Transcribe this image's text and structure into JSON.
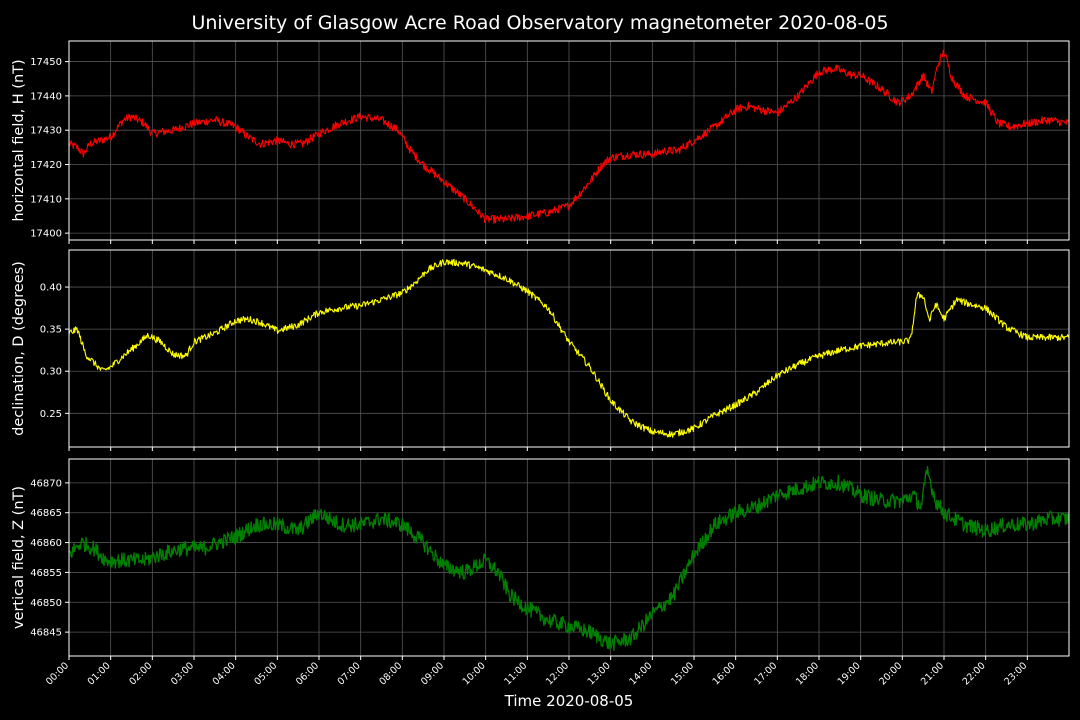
{
  "title": "University of Glasgow Acre Road Observatory magnetometer 2020-08-05",
  "xlabel": "Time 2020-08-05",
  "colors": {
    "background": "#000000",
    "grid": "#555555",
    "axes": "#ffffff",
    "text": "#ffffff"
  },
  "chart_data": [
    {
      "type": "line",
      "ylabel": "horizontal field, H (nT)",
      "color": "#ff0000",
      "ylim": [
        17398,
        17456
      ],
      "yticks": [
        17400,
        17410,
        17420,
        17430,
        17440,
        17450
      ],
      "noise": 1.2,
      "x_hours": [
        0,
        0.2,
        0.35,
        0.5,
        1,
        1.3,
        1.5,
        1.8,
        2.0,
        2.5,
        3.0,
        3.5,
        4.0,
        4.3,
        4.6,
        5.0,
        5.3,
        5.6,
        6.0,
        6.5,
        7.0,
        7.5,
        7.9,
        8.2,
        8.5,
        9.0,
        9.5,
        10.0,
        10.5,
        11.0,
        11.5,
        12.0,
        12.5,
        12.8,
        13.0,
        13.5,
        14.0,
        14.3,
        14.6,
        15.0,
        15.5,
        16.0,
        16.3,
        16.6,
        17.0,
        17.5,
        18.0,
        18.4,
        18.8,
        19.0,
        19.5,
        19.9,
        20.2,
        20.5,
        20.7,
        20.85,
        21.0,
        21.2,
        21.5,
        22.0,
        22.3,
        22.6,
        23.0,
        23.5,
        24.0
      ],
      "values": [
        17426,
        17425,
        17423,
        17426,
        17428,
        17433,
        17434,
        17432,
        17429,
        17430,
        17432,
        17433,
        17431,
        17428,
        17426,
        17427,
        17426,
        17426,
        17429,
        17432,
        17434,
        17433,
        17430,
        17424,
        17420,
        17415,
        17410,
        17404,
        17404,
        17405,
        17406,
        17408,
        17415,
        17420,
        17422,
        17423,
        17423,
        17424,
        17424,
        17427,
        17431,
        17436,
        17437,
        17436,
        17435,
        17440,
        17447,
        17448,
        17446,
        17446,
        17442,
        17438,
        17440,
        17446,
        17441,
        17449,
        17453,
        17445,
        17440,
        17438,
        17432,
        17431,
        17432,
        17433,
        17432
      ]
    },
    {
      "type": "line",
      "ylabel": "declination, D (degrees)",
      "color": "#ffff00",
      "ylim": [
        0.21,
        0.444
      ],
      "yticks": [
        0.25,
        0.3,
        0.35,
        0.4
      ],
      "ytick_labels": [
        "0.25",
        "0.30",
        "0.35",
        "0.40"
      ],
      "noise": 0.004,
      "x_hours": [
        0,
        0.2,
        0.4,
        0.6,
        0.8,
        1.0,
        1.3,
        1.6,
        1.9,
        2.2,
        2.5,
        2.8,
        3.0,
        3.5,
        4.0,
        4.3,
        4.6,
        5.0,
        5.5,
        6.0,
        6.5,
        7.0,
        7.5,
        8.0,
        8.3,
        8.6,
        9.0,
        9.5,
        10.0,
        10.5,
        11.0,
        11.5,
        12.0,
        12.5,
        13.0,
        13.5,
        14.0,
        14.5,
        15.0,
        15.5,
        16.0,
        16.5,
        17.0,
        17.5,
        18.0,
        18.5,
        19.0,
        19.5,
        20.0,
        20.2,
        20.35,
        20.5,
        20.65,
        20.8,
        21.0,
        21.3,
        21.6,
        22.0,
        22.5,
        23.0,
        24.0
      ],
      "values": [
        0.345,
        0.35,
        0.32,
        0.31,
        0.3,
        0.305,
        0.318,
        0.33,
        0.343,
        0.335,
        0.32,
        0.318,
        0.335,
        0.345,
        0.36,
        0.362,
        0.358,
        0.348,
        0.355,
        0.37,
        0.375,
        0.378,
        0.385,
        0.393,
        0.405,
        0.42,
        0.43,
        0.428,
        0.42,
        0.41,
        0.395,
        0.375,
        0.335,
        0.305,
        0.265,
        0.24,
        0.228,
        0.225,
        0.232,
        0.248,
        0.26,
        0.275,
        0.295,
        0.308,
        0.318,
        0.325,
        0.33,
        0.333,
        0.335,
        0.337,
        0.39,
        0.39,
        0.36,
        0.38,
        0.362,
        0.385,
        0.38,
        0.375,
        0.352,
        0.34,
        0.34
      ]
    },
    {
      "type": "line",
      "ylabel": "vertical field, Z (nT)",
      "color": "#008000",
      "ylim": [
        46841,
        46874
      ],
      "yticks": [
        46845,
        46850,
        46855,
        46860,
        46865,
        46870
      ],
      "noise": 0.8,
      "x_hours": [
        0,
        0.3,
        0.6,
        0.9,
        1.2,
        1.8,
        2.2,
        2.7,
        3.2,
        3.6,
        4.0,
        4.5,
        5.0,
        5.5,
        6.0,
        6.5,
        7.0,
        7.5,
        8.0,
        8.5,
        9.0,
        9.5,
        10.0,
        10.3,
        10.6,
        11.0,
        11.5,
        12.0,
        12.5,
        13.0,
        13.5,
        14.0,
        14.5,
        15.0,
        15.5,
        16.0,
        16.5,
        17.0,
        17.5,
        18.0,
        18.5,
        19.0,
        19.5,
        20.0,
        20.25,
        20.45,
        20.6,
        20.8,
        21.0,
        21.5,
        22.0,
        22.5,
        23.0,
        23.5,
        24.0
      ],
      "values": [
        46858,
        46860,
        46859,
        46857,
        46857,
        46857,
        46858,
        46859,
        46859,
        46860,
        46861,
        46863,
        46863,
        46862,
        46865,
        46863,
        46863,
        46864,
        46863,
        46860,
        46856,
        46855,
        46857,
        46855,
        46851,
        46849,
        46847,
        46846,
        46845,
        46843,
        46844,
        46848,
        46851,
        46858,
        46863,
        46865,
        46866,
        46868,
        46869,
        46870,
        46870,
        46868,
        46867,
        46867,
        46868,
        46866,
        46872,
        46867,
        46865,
        46863,
        46862,
        46863,
        46863,
        46864,
        46864
      ]
    }
  ],
  "x_ticks": [
    "00:00",
    "01:00",
    "02:00",
    "03:00",
    "04:00",
    "05:00",
    "06:00",
    "07:00",
    "08:00",
    "09:00",
    "10:00",
    "11:00",
    "12:00",
    "13:00",
    "14:00",
    "15:00",
    "16:00",
    "17:00",
    "18:00",
    "19:00",
    "20:00",
    "21:00",
    "22:00",
    "23:00"
  ],
  "xlim_hours": [
    0,
    24
  ]
}
